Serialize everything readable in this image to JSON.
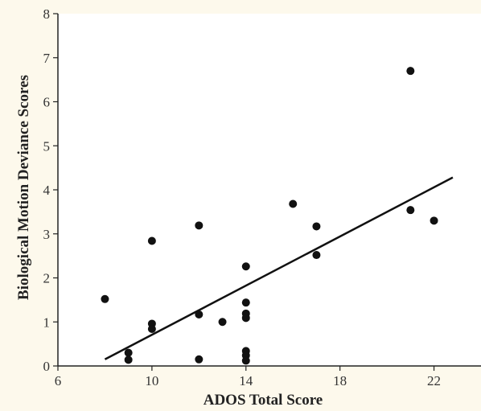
{
  "chart_data": {
    "type": "scatter",
    "title": "",
    "xlabel": "ADOS Total Score",
    "ylabel": "Biological Motion Deviance Scores",
    "xlim": [
      6,
      24
    ],
    "ylim": [
      0,
      8
    ],
    "x_ticks": [
      6,
      10,
      14,
      18,
      22
    ],
    "y_ticks": [
      0,
      1,
      2,
      3,
      4,
      5,
      6,
      7,
      8
    ],
    "grid": false,
    "legend": "none",
    "point_color": "#111111",
    "points": [
      {
        "x": 8,
        "y": 1.52
      },
      {
        "x": 9,
        "y": 0.3
      },
      {
        "x": 9,
        "y": 0.14
      },
      {
        "x": 10,
        "y": 2.84
      },
      {
        "x": 10,
        "y": 0.96
      },
      {
        "x": 10,
        "y": 0.84
      },
      {
        "x": 12,
        "y": 3.19
      },
      {
        "x": 12,
        "y": 1.17
      },
      {
        "x": 12,
        "y": 0.15
      },
      {
        "x": 13,
        "y": 1.0
      },
      {
        "x": 14,
        "y": 2.26
      },
      {
        "x": 14,
        "y": 1.44
      },
      {
        "x": 14,
        "y": 1.19
      },
      {
        "x": 14,
        "y": 1.09
      },
      {
        "x": 14,
        "y": 0.34
      },
      {
        "x": 14,
        "y": 0.24
      },
      {
        "x": 14,
        "y": 0.12
      },
      {
        "x": 16,
        "y": 3.68
      },
      {
        "x": 17,
        "y": 3.17
      },
      {
        "x": 17,
        "y": 2.52
      },
      {
        "x": 21,
        "y": 6.7
      },
      {
        "x": 21,
        "y": 3.54
      },
      {
        "x": 22,
        "y": 3.3
      }
    ],
    "trendline": {
      "x": [
        8,
        22.8
      ],
      "y": [
        0.15,
        4.28
      ]
    }
  }
}
